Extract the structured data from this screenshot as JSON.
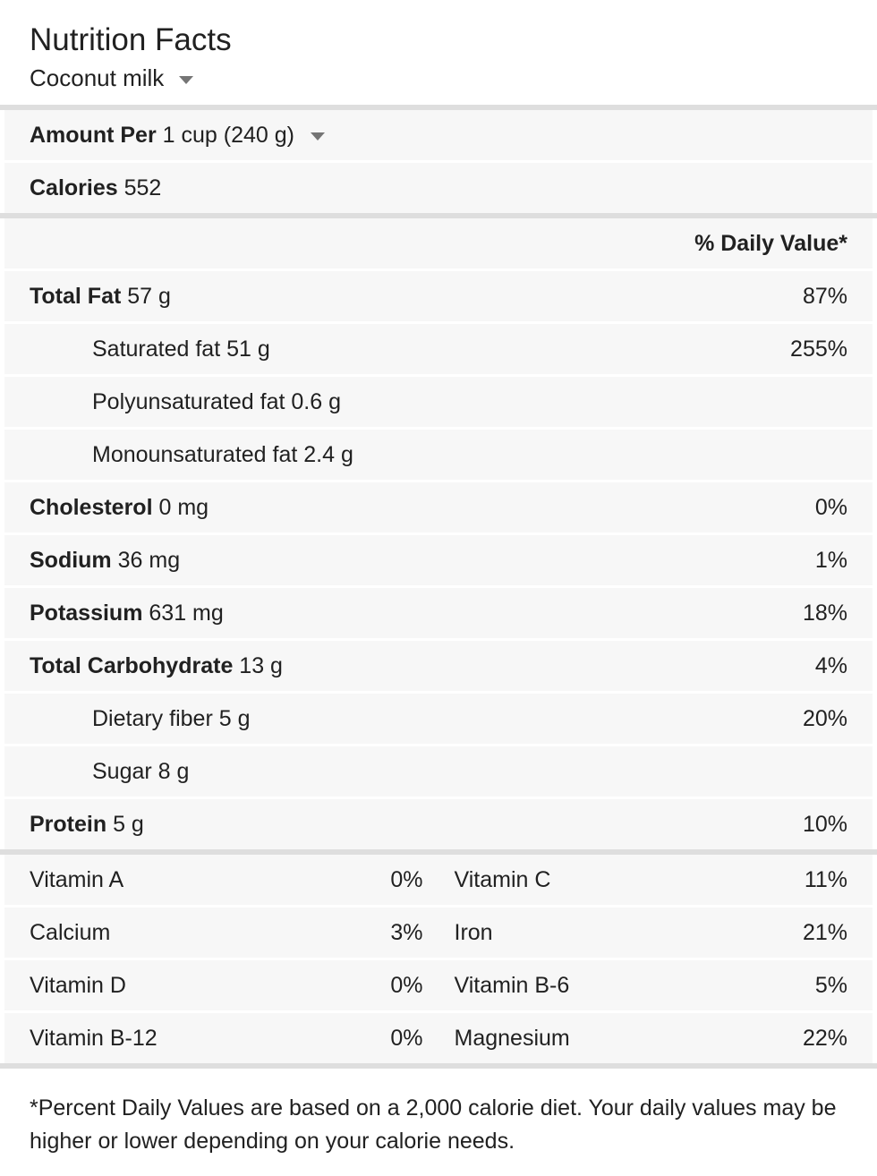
{
  "colors": {
    "text": "#212121",
    "row_background": "#f7f7f7",
    "divider_thick": "#dedede",
    "divider_thin": "#ffffff",
    "caret": "#757575"
  },
  "icons": {
    "food_caret": "caret-down-icon",
    "serving_caret": "caret-down-icon"
  },
  "header": {
    "title": "Nutrition Facts",
    "food_selector": "Coconut milk"
  },
  "serving": {
    "label": "Amount Per",
    "value": "1 cup (240 g)"
  },
  "calories": {
    "label": "Calories",
    "value": "552"
  },
  "daily_value_header": "% Daily Value*",
  "nutrients": [
    {
      "label": "Total Fat",
      "amount": "57 g",
      "dv": "87%"
    },
    {
      "label": "Saturated fat",
      "amount": "51 g",
      "dv": "255%"
    },
    {
      "label": "Polyunsaturated fat",
      "amount": "0.6 g",
      "dv": ""
    },
    {
      "label": "Monounsaturated fat",
      "amount": "2.4 g",
      "dv": ""
    },
    {
      "label": "Cholesterol",
      "amount": "0 mg",
      "dv": "0%"
    },
    {
      "label": "Sodium",
      "amount": "36 mg",
      "dv": "1%"
    },
    {
      "label": "Potassium",
      "amount": "631 mg",
      "dv": "18%"
    },
    {
      "label": "Total Carbohydrate",
      "amount": "13 g",
      "dv": "4%"
    },
    {
      "label": "Dietary fiber",
      "amount": "5 g",
      "dv": "20%"
    },
    {
      "label": "Sugar",
      "amount": "8 g",
      "dv": ""
    },
    {
      "label": "Protein",
      "amount": "5 g",
      "dv": "10%"
    }
  ],
  "micronutrients": [
    {
      "left": {
        "label": "Vitamin A",
        "dv": "0%"
      },
      "right": {
        "label": "Vitamin C",
        "dv": "11%"
      }
    },
    {
      "left": {
        "label": "Calcium",
        "dv": "3%"
      },
      "right": {
        "label": "Iron",
        "dv": "21%"
      }
    },
    {
      "left": {
        "label": "Vitamin D",
        "dv": "0%"
      },
      "right": {
        "label": "Vitamin B-6",
        "dv": "5%"
      }
    },
    {
      "left": {
        "label": "Vitamin B-12",
        "dv": "0%"
      },
      "right": {
        "label": "Magnesium",
        "dv": "22%"
      }
    }
  ],
  "footnote": "*Percent Daily Values are based on a 2,000 calorie diet. Your daily values may be higher or lower depending on your calorie needs."
}
